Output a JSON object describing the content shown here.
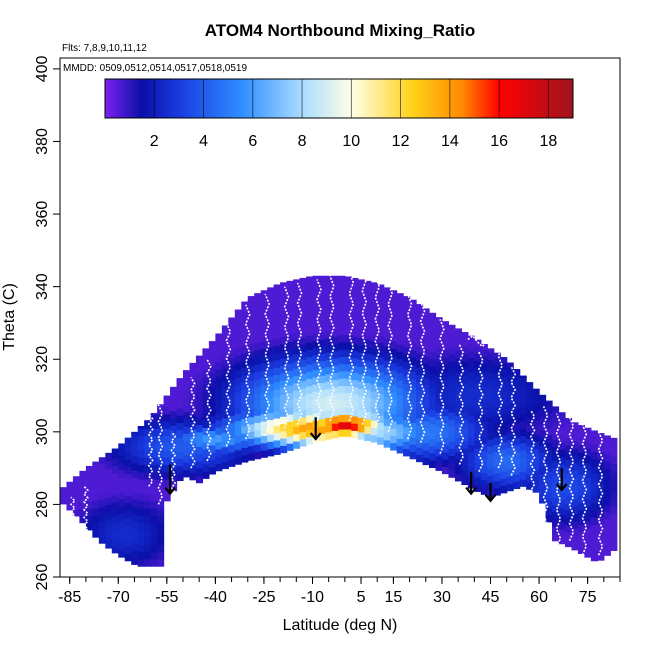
{
  "chart_data": {
    "type": "heatmap",
    "title": "ATOM4 Northbound Mixing_Ratio",
    "subtitle_flights": "Flts: 7,8,9,10,11,12",
    "subtitle_dates": "MMDD: 0509,0512,0514,0517,0518,0519",
    "xlabel": "Latitude (deg N)",
    "ylabel": "Theta (C)",
    "xlim": [
      -88,
      85
    ],
    "ylim": [
      260,
      403
    ],
    "x_ticks": [
      -85,
      -70,
      -55,
      -40,
      -25,
      -10,
      5,
      15,
      30,
      45,
      60,
      75
    ],
    "x_minor_step": 5,
    "y_ticks": [
      260,
      280,
      300,
      320,
      340,
      360,
      380,
      400
    ],
    "colorbar": {
      "min": 0,
      "max": 19,
      "ticks": [
        2,
        4,
        6,
        8,
        10,
        12,
        14,
        16,
        18
      ],
      "colors": [
        "#7B22F0",
        "#0A0FA8",
        "#1A3BE0",
        "#2E8CFF",
        "#A8DCFF",
        "#FFFFE8",
        "#FFD21A",
        "#FF8A00",
        "#FF0000",
        "#A0141E"
      ],
      "stops": [
        0,
        1.5,
        3,
        5.5,
        8,
        10,
        12.5,
        14.5,
        16,
        19
      ]
    },
    "field": {
      "lat_step": 2,
      "lat_range": [
        -88,
        84
      ],
      "lower_boundary": [
        [
          -88,
          281
        ],
        [
          -82,
          276
        ],
        [
          -76,
          270
        ],
        [
          -70,
          266
        ],
        [
          -64,
          263
        ],
        [
          -56,
          263
        ],
        [
          -55,
          281
        ],
        [
          -50,
          288
        ],
        [
          -45,
          286
        ],
        [
          -40,
          289
        ],
        [
          -30,
          292
        ],
        [
          -20,
          294
        ],
        [
          -10,
          297
        ],
        [
          0,
          299
        ],
        [
          10,
          297
        ],
        [
          20,
          293
        ],
        [
          30,
          289
        ],
        [
          40,
          284
        ],
        [
          45,
          282
        ],
        [
          55,
          285
        ],
        [
          60,
          283
        ],
        [
          65,
          270
        ],
        [
          70,
          268
        ],
        [
          78,
          264
        ],
        [
          84,
          268
        ]
      ],
      "upper_boundary": [
        [
          -88,
          284
        ],
        [
          -80,
          290
        ],
        [
          -70,
          296
        ],
        [
          -60,
          304
        ],
        [
          -50,
          316
        ],
        [
          -40,
          326
        ],
        [
          -30,
          337
        ],
        [
          -20,
          341
        ],
        [
          -10,
          343
        ],
        [
          0,
          343
        ],
        [
          10,
          341
        ],
        [
          20,
          337
        ],
        [
          30,
          331
        ],
        [
          40,
          326
        ],
        [
          50,
          320
        ],
        [
          60,
          311
        ],
        [
          70,
          303
        ],
        [
          78,
          300
        ],
        [
          84,
          298
        ]
      ],
      "background_value": 0.6,
      "features": [
        {
          "lat": -10,
          "theta": 301,
          "value": 14,
          "lat_radius": 24,
          "theta_radius": 5
        },
        {
          "lat": 0,
          "theta": 302,
          "value": 17,
          "lat_radius": 13,
          "theta_radius": 4
        },
        {
          "lat": -4,
          "theta": 308,
          "value": 9,
          "lat_radius": 28,
          "theta_radius": 12
        },
        {
          "lat": 10,
          "theta": 300,
          "value": 8,
          "lat_radius": 18,
          "theta_radius": 6
        },
        {
          "lat": -40,
          "theta": 298,
          "value": 6,
          "lat_radius": 16,
          "theta_radius": 4
        },
        {
          "lat": -68,
          "theta": 272,
          "value": 2.5,
          "lat_radius": 16,
          "theta_radius": 10
        },
        {
          "lat": -50,
          "theta": 296,
          "value": 4,
          "lat_radius": 22,
          "theta_radius": 8
        },
        {
          "lat": 25,
          "theta": 300,
          "value": 5,
          "lat_radius": 20,
          "theta_radius": 8
        },
        {
          "lat": 50,
          "theta": 292,
          "value": 4.5,
          "lat_radius": 15,
          "theta_radius": 8
        },
        {
          "lat": 68,
          "theta": 285,
          "value": 3.5,
          "lat_radius": 15,
          "theta_radius": 10
        },
        {
          "lat": 40,
          "theta": 310,
          "value": 2.5,
          "lat_radius": 30,
          "theta_radius": 12
        }
      ]
    },
    "flight_tracks": {
      "color": "#FFFFFF",
      "profiles": [
        [
          -84,
          268,
          282
        ],
        [
          -80,
          270,
          285
        ],
        [
          -60,
          285,
          305
        ],
        [
          -57,
          280,
          312
        ],
        [
          -53,
          282,
          300
        ],
        [
          -47,
          290,
          315
        ],
        [
          -42,
          292,
          320
        ],
        [
          -36,
          296,
          330
        ],
        [
          -30,
          298,
          335
        ],
        [
          -24,
          299,
          338
        ],
        [
          -18,
          301,
          340
        ],
        [
          -14,
          302,
          341
        ],
        [
          -8,
          303,
          342
        ],
        [
          -4,
          303,
          343
        ],
        [
          2,
          303,
          344
        ],
        [
          6,
          302,
          345
        ],
        [
          10,
          301,
          343
        ],
        [
          14,
          300,
          341
        ],
        [
          20,
          298,
          338
        ],
        [
          24,
          297,
          336
        ],
        [
          30,
          294,
          331
        ],
        [
          36,
          291,
          324
        ],
        [
          42,
          289,
          322
        ],
        [
          48,
          290,
          326
        ],
        [
          52,
          288,
          318
        ],
        [
          58,
          280,
          306
        ],
        [
          62,
          272,
          307
        ],
        [
          66,
          268,
          305
        ],
        [
          70,
          270,
          304
        ],
        [
          74,
          266,
          302
        ],
        [
          79,
          266,
          300
        ]
      ],
      "level_segment": {
        "lat_range": [
          38,
          62
        ],
        "theta": 325
      }
    },
    "arrows": [
      {
        "lat": -54,
        "theta_top": 291,
        "theta_tip": 283
      },
      {
        "lat": -9,
        "theta_top": 304,
        "theta_tip": 298
      },
      {
        "lat": 39,
        "theta_top": 289,
        "theta_tip": 283
      },
      {
        "lat": 45,
        "theta_top": 286,
        "theta_tip": 281
      },
      {
        "lat": 67,
        "theta_top": 290,
        "theta_tip": 284
      }
    ]
  }
}
